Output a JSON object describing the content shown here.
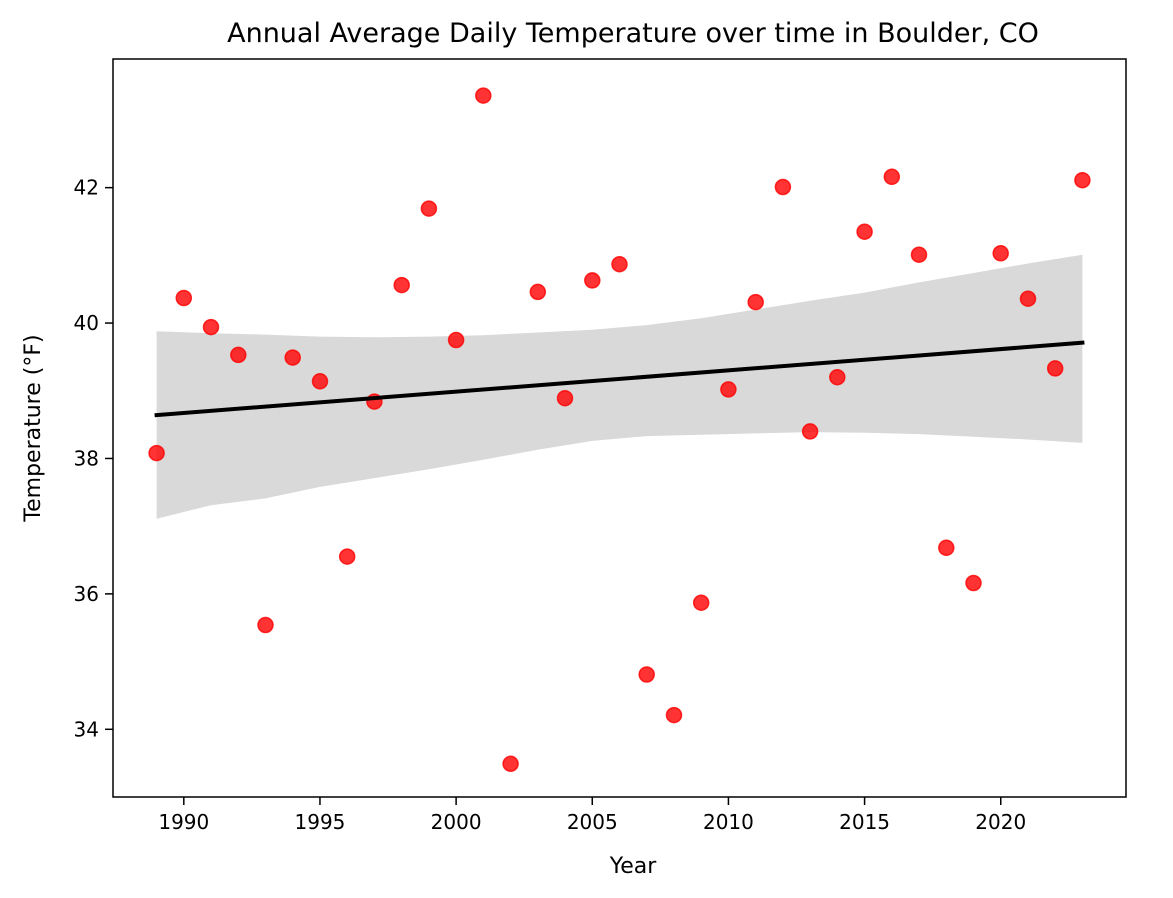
{
  "chart_data": {
    "type": "scatter",
    "title": "Annual Average Daily Temperature over time in Boulder, CO",
    "xlabel": "Year",
    "ylabel": "Temperature (°F)",
    "xlim": [
      1987.4,
      2024.6
    ],
    "ylim": [
      33.0,
      43.9
    ],
    "xticks": [
      1990,
      1995,
      2000,
      2005,
      2010,
      2015,
      2020
    ],
    "yticks": [
      34,
      36,
      38,
      40,
      42
    ],
    "grid": false,
    "legend": "none",
    "point_color": "#ff0000",
    "line_color": "#000000",
    "band_color": "#d9d9d9",
    "points": [
      {
        "x": 1989,
        "y": 38.08
      },
      {
        "x": 1990,
        "y": 40.37
      },
      {
        "x": 1991,
        "y": 39.94
      },
      {
        "x": 1992,
        "y": 39.53
      },
      {
        "x": 1993,
        "y": 35.54
      },
      {
        "x": 1994,
        "y": 39.49
      },
      {
        "x": 1995,
        "y": 39.14
      },
      {
        "x": 1996,
        "y": 36.55
      },
      {
        "x": 1997,
        "y": 38.84
      },
      {
        "x": 1998,
        "y": 40.56
      },
      {
        "x": 1999,
        "y": 41.69
      },
      {
        "x": 2000,
        "y": 39.75
      },
      {
        "x": 2001,
        "y": 43.36
      },
      {
        "x": 2002,
        "y": 33.49
      },
      {
        "x": 2003,
        "y": 40.46
      },
      {
        "x": 2004,
        "y": 38.89
      },
      {
        "x": 2005,
        "y": 40.63
      },
      {
        "x": 2006,
        "y": 40.87
      },
      {
        "x": 2007,
        "y": 34.81
      },
      {
        "x": 2008,
        "y": 34.21
      },
      {
        "x": 2009,
        "y": 35.87
      },
      {
        "x": 2010,
        "y": 39.02
      },
      {
        "x": 2011,
        "y": 40.31
      },
      {
        "x": 2012,
        "y": 42.01
      },
      {
        "x": 2013,
        "y": 38.4
      },
      {
        "x": 2014,
        "y": 39.2
      },
      {
        "x": 2015,
        "y": 41.35
      },
      {
        "x": 2016,
        "y": 42.16
      },
      {
        "x": 2017,
        "y": 41.01
      },
      {
        "x": 2018,
        "y": 36.68
      },
      {
        "x": 2019,
        "y": 36.16
      },
      {
        "x": 2020,
        "y": 41.03
      },
      {
        "x": 2021,
        "y": 40.36
      },
      {
        "x": 2022,
        "y": 39.33
      },
      {
        "x": 2023,
        "y": 42.11
      }
    ],
    "regression": {
      "x": [
        1989,
        2023
      ],
      "y": [
        38.64,
        39.71
      ]
    },
    "confidence_band": {
      "x": [
        1989,
        1991,
        1993,
        1995,
        1997,
        1999,
        2001,
        2003,
        2005,
        2007,
        2009,
        2011,
        2013,
        2015,
        2017,
        2019,
        2021,
        2023
      ],
      "upper": [
        39.88,
        39.85,
        39.83,
        39.8,
        39.79,
        39.8,
        39.82,
        39.86,
        39.9,
        39.97,
        40.07,
        40.2,
        40.33,
        40.45,
        40.6,
        40.74,
        40.88,
        41.01
      ],
      "lower": [
        37.11,
        37.31,
        37.41,
        37.58,
        37.71,
        37.84,
        37.98,
        38.13,
        38.26,
        38.33,
        38.35,
        38.37,
        38.39,
        38.38,
        38.36,
        38.32,
        38.28,
        38.23
      ]
    }
  }
}
